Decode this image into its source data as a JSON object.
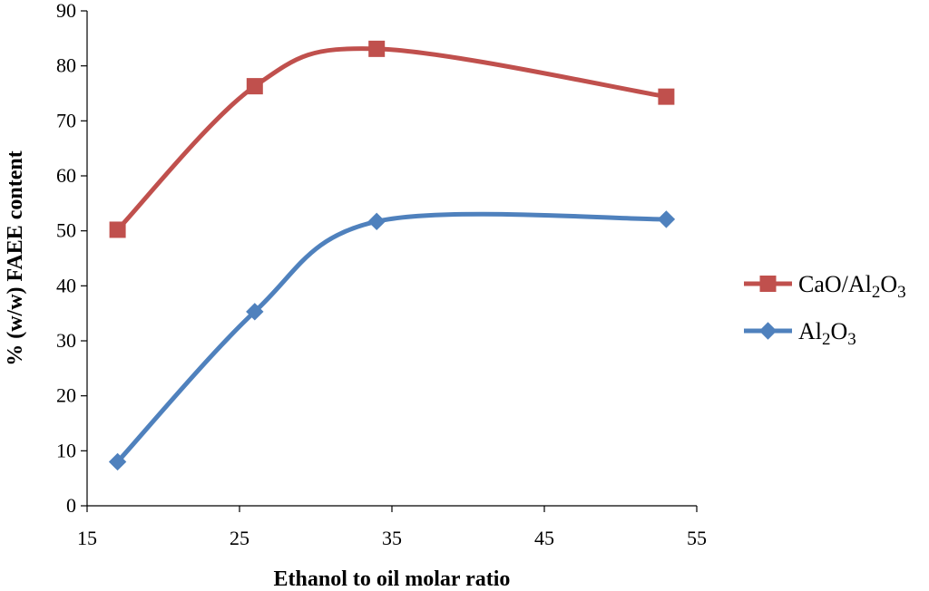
{
  "chart_data": {
    "type": "line",
    "smooth": true,
    "title": "",
    "xlabel": "Ethanol to oil molar ratio",
    "ylabel": "% (w/w) FAEE content",
    "xlim": [
      15,
      55
    ],
    "ylim": [
      0,
      90
    ],
    "x_ticks": [
      "15",
      "25",
      "35",
      "45",
      "55"
    ],
    "y_ticks": [
      "0",
      "10",
      "20",
      "30",
      "40",
      "50",
      "60",
      "70",
      "80",
      "90"
    ],
    "grid": false,
    "legend_position": "right",
    "series": [
      {
        "name": "CaO/Al2O3",
        "legend_parts": [
          "CaO/Al",
          "2",
          "O",
          "3"
        ],
        "color": "#C0504D",
        "marker": "square",
        "x": [
          17,
          26,
          34,
          53
        ],
        "y": [
          50.2,
          76.3,
          83.1,
          74.4
        ]
      },
      {
        "name": "Al2O3",
        "legend_parts": [
          "Al",
          "2",
          "O",
          "3"
        ],
        "color": "#4F81BD",
        "marker": "diamond",
        "x": [
          17,
          26,
          34,
          53
        ],
        "y": [
          8.0,
          35.3,
          51.7,
          52.1
        ]
      }
    ]
  }
}
